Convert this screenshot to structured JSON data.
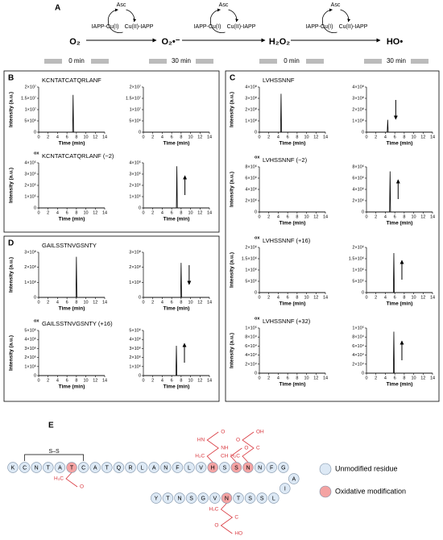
{
  "panels": [
    "A",
    "B",
    "C",
    "D",
    "E"
  ],
  "scheme": {
    "species": [
      "O₂",
      "O₂•⁻",
      "H₂O₂",
      "HO•"
    ],
    "catalysts": [
      {
        "top": "Asc",
        "left": "IAPP-Cu(I)",
        "right": "Cu(II)-IAPP"
      },
      {
        "top": "Asc",
        "left": "IAPP-Cu(I)",
        "right": "Cu(II)-IAPP"
      },
      {
        "top": "Asc",
        "left": "IAPP-Cu(I)",
        "right": "Cu(II)-IAPP"
      }
    ]
  },
  "time_headers": [
    "0 min",
    "30 min",
    "0 min",
    "30 min"
  ],
  "chart_data": [
    {
      "type": "line",
      "title": "KCNTATCATQRLANF",
      "xlabel": "Time (min)",
      "ylabel": "Intensity (a.u.)",
      "x": [
        0,
        7.2,
        7.3,
        7.4,
        14
      ],
      "values": [
        0,
        0,
        16500000,
        0,
        0
      ],
      "color": "#000000",
      "xlim": [
        0,
        14
      ],
      "xticks": [
        0,
        2,
        4,
        6,
        8,
        10,
        12,
        14
      ],
      "ylim": [
        0,
        20000000
      ],
      "yticks": [
        0,
        {
          "value": 5000000,
          "label": "5×10⁶"
        },
        {
          "value": 10000000,
          "label": "1×10⁷"
        },
        {
          "value": 15000000,
          "label": "1.5×10⁷"
        },
        {
          "value": 20000000,
          "label": "2×10⁷"
        }
      ]
    },
    {
      "type": "line",
      "xlabel": "Time (min)",
      "x": [
        0,
        14
      ],
      "values": [
        0,
        0
      ],
      "color": "#000000",
      "xlim": [
        0,
        14
      ],
      "xticks": [
        0,
        2,
        4,
        6,
        8,
        10,
        12,
        14
      ],
      "ylim": [
        0,
        20000000
      ],
      "yticks": [
        0,
        {
          "value": 5000000,
          "label": "5×10⁶"
        },
        {
          "value": 10000000,
          "label": "1×10⁷"
        },
        {
          "value": 15000000,
          "label": "1.5×10⁷"
        },
        {
          "value": 20000000,
          "label": "2×10⁷"
        }
      ]
    },
    {
      "type": "line",
      "title_prefix": "ox",
      "title": "KCNTATCATQRLANF (−2)",
      "xlabel": "Time (min)",
      "ylabel": "Intensity (a.u.)",
      "x": [
        0,
        14
      ],
      "values": [
        0,
        0
      ],
      "color": "#000000",
      "xlim": [
        0,
        14
      ],
      "xticks": [
        0,
        2,
        4,
        6,
        8,
        10,
        12,
        14
      ],
      "ylim": [
        0,
        400000
      ],
      "yticks": [
        0,
        {
          "value": 100000,
          "label": "1×10⁵"
        },
        {
          "value": 200000,
          "label": "2×10⁵"
        },
        {
          "value": 300000,
          "label": "3×10⁵"
        },
        {
          "value": 400000,
          "label": "4×10⁵"
        }
      ]
    },
    {
      "type": "line",
      "xlabel": "Time (min)",
      "x": [
        0,
        7.0,
        7.1,
        7.2,
        14
      ],
      "values": [
        0,
        0,
        370000,
        0,
        0
      ],
      "color": "#000000",
      "arrow": "up",
      "xlim": [
        0,
        14
      ],
      "xticks": [
        0,
        2,
        4,
        6,
        8,
        10,
        12,
        14
      ],
      "ylim": [
        0,
        400000
      ],
      "yticks": [
        0,
        {
          "value": 100000,
          "label": "1×10⁵"
        },
        {
          "value": 200000,
          "label": "2×10⁵"
        },
        {
          "value": 300000,
          "label": "3×10⁵"
        },
        {
          "value": 400000,
          "label": "4×10⁵"
        }
      ]
    },
    {
      "type": "line",
      "title": "GAILSSTNVGSNTY",
      "xlabel": "Time (min)",
      "ylabel": "Intensity (a.u.)",
      "x": [
        0,
        7.9,
        8.0,
        8.1,
        14
      ],
      "values": [
        0,
        0,
        270000000,
        0,
        0
      ],
      "color": "#000000",
      "xlim": [
        0,
        14
      ],
      "xticks": [
        0,
        2,
        4,
        6,
        8,
        10,
        12,
        14
      ],
      "ylim": [
        0,
        300000000
      ],
      "yticks": [
        0,
        {
          "value": 100000000,
          "label": "1×10⁸"
        },
        {
          "value": 200000000,
          "label": "2×10⁸"
        },
        {
          "value": 300000000,
          "label": "3×10⁸"
        }
      ]
    },
    {
      "type": "line",
      "xlabel": "Time (min)",
      "x": [
        0,
        7.9,
        8.0,
        8.1,
        14
      ],
      "values": [
        0,
        0,
        230000000,
        0,
        0
      ],
      "color": "#000000",
      "arrow": "down",
      "xlim": [
        0,
        14
      ],
      "xticks": [
        0,
        2,
        4,
        6,
        8,
        10,
        12,
        14
      ],
      "ylim": [
        0,
        300000000
      ],
      "yticks": [
        0,
        {
          "value": 100000000,
          "label": "1×10⁸"
        },
        {
          "value": 200000000,
          "label": "2×10⁸"
        },
        {
          "value": 300000000,
          "label": "3×10⁸"
        }
      ]
    },
    {
      "type": "line",
      "title_prefix": "ox",
      "title": "GAILSSTNVGSNTY (+16)",
      "xlabel": "Time (min)",
      "ylabel": "Intensity (a.u.)",
      "x": [
        0,
        14
      ],
      "values": [
        0,
        0
      ],
      "color": "#000000",
      "xlim": [
        0,
        14
      ],
      "xticks": [
        0,
        2,
        4,
        6,
        8,
        10,
        12,
        14
      ],
      "ylim": [
        0,
        5000000
      ],
      "yticks": [
        0,
        {
          "value": 1000000,
          "label": "1×10⁶"
        },
        {
          "value": 2000000,
          "label": "2×10⁶"
        },
        {
          "value": 3000000,
          "label": "3×10⁶"
        },
        {
          "value": 4000000,
          "label": "4×10⁶"
        },
        {
          "value": 5000000,
          "label": "5×10⁶"
        }
      ]
    },
    {
      "type": "line",
      "xlabel": "Time (min)",
      "x": [
        0,
        6.9,
        7.0,
        7.1,
        14
      ],
      "values": [
        0,
        0,
        3300000,
        0,
        0
      ],
      "color": "#000000",
      "arrow": "up",
      "xlim": [
        0,
        14
      ],
      "xticks": [
        0,
        2,
        4,
        6,
        8,
        10,
        12,
        14
      ],
      "ylim": [
        0,
        5000000
      ],
      "yticks": [
        0,
        {
          "value": 1000000,
          "label": "1×10⁶"
        },
        {
          "value": 2000000,
          "label": "2×10⁶"
        },
        {
          "value": 3000000,
          "label": "3×10⁶"
        },
        {
          "value": 4000000,
          "label": "4×10⁶"
        },
        {
          "value": 5000000,
          "label": "5×10⁶"
        }
      ]
    },
    {
      "type": "line",
      "title": "LVHSSNNF",
      "xlabel": "Time (min)",
      "ylabel": "Intensity (a.u.)",
      "x": [
        0,
        4.5,
        4.6,
        4.7,
        14
      ],
      "values": [
        0,
        0,
        340000000,
        0,
        0
      ],
      "color": "#000000",
      "xlim": [
        0,
        14
      ],
      "xticks": [
        0,
        2,
        4,
        6,
        8,
        10,
        12,
        14
      ],
      "ylim": [
        0,
        400000000
      ],
      "yticks": [
        0,
        {
          "value": 100000000,
          "label": "1×10⁸"
        },
        {
          "value": 200000000,
          "label": "2×10⁸"
        },
        {
          "value": 300000000,
          "label": "3×10⁸"
        },
        {
          "value": 400000000,
          "label": "4×10⁸"
        }
      ]
    },
    {
      "type": "line",
      "xlabel": "Time (min)",
      "x": [
        0,
        4.4,
        4.5,
        4.6,
        14
      ],
      "values": [
        0,
        0,
        110000000,
        0,
        0
      ],
      "color": "#000000",
      "arrow": "down",
      "xlim": [
        0,
        14
      ],
      "xticks": [
        0,
        2,
        4,
        6,
        8,
        10,
        12,
        14
      ],
      "ylim": [
        0,
        400000000
      ],
      "yticks": [
        0,
        {
          "value": 100000000,
          "label": "1×10⁸"
        },
        {
          "value": 200000000,
          "label": "2×10⁸"
        },
        {
          "value": 300000000,
          "label": "3×10⁸"
        },
        {
          "value": 400000000,
          "label": "4×10⁸"
        }
      ]
    },
    {
      "type": "line",
      "title_prefix": "ox",
      "title": "LVHSSNNF (−2)",
      "xlabel": "Time (min)",
      "ylabel": "Intensity (a.u.)",
      "x": [
        0,
        14
      ],
      "values": [
        0,
        0
      ],
      "color": "#000000",
      "xlim": [
        0,
        14
      ],
      "xticks": [
        0,
        2,
        4,
        6,
        8,
        10,
        12,
        14
      ],
      "ylim": [
        0,
        8000000
      ],
      "yticks": [
        0,
        {
          "value": 2000000,
          "label": "2×10⁶"
        },
        {
          "value": 4000000,
          "label": "4×10⁶"
        },
        {
          "value": 6000000,
          "label": "6×10⁶"
        },
        {
          "value": 8000000,
          "label": "8×10⁶"
        }
      ]
    },
    {
      "type": "line",
      "xlabel": "Time (min)",
      "x": [
        0,
        4.9,
        5.0,
        5.1,
        14
      ],
      "values": [
        0,
        0,
        7200000,
        0,
        0
      ],
      "color": "#000000",
      "arrow": "up",
      "xlim": [
        0,
        14
      ],
      "xticks": [
        0,
        2,
        4,
        6,
        8,
        10,
        12,
        14
      ],
      "ylim": [
        0,
        8000000
      ],
      "yticks": [
        0,
        {
          "value": 2000000,
          "label": "2×10⁶"
        },
        {
          "value": 4000000,
          "label": "4×10⁶"
        },
        {
          "value": 6000000,
          "label": "6×10⁶"
        },
        {
          "value": 8000000,
          "label": "8×10⁶"
        }
      ]
    },
    {
      "type": "line",
      "title_prefix": "ox",
      "title": "LVHSSNNF (+16)",
      "xlabel": "Time (min)",
      "ylabel": "Intensity (a.u.)",
      "x": [
        0,
        14
      ],
      "values": [
        0,
        0
      ],
      "color": "#000000",
      "xlim": [
        0,
        14
      ],
      "xticks": [
        0,
        2,
        4,
        6,
        8,
        10,
        12,
        14
      ],
      "ylim": [
        0,
        2000000
      ],
      "yticks": [
        0,
        {
          "value": 500000,
          "label": "5×10⁵"
        },
        {
          "value": 1000000,
          "label": "1×10⁶"
        },
        {
          "value": 1500000,
          "label": "1.5×10⁶"
        },
        {
          "value": 2000000,
          "label": "2×10⁶"
        }
      ]
    },
    {
      "type": "line",
      "xlabel": "Time (min)",
      "x": [
        0,
        5.7,
        5.8,
        5.9,
        14
      ],
      "values": [
        0,
        0,
        1750000,
        0,
        0
      ],
      "color": "#000000",
      "arrow": "up",
      "xlim": [
        0,
        14
      ],
      "xticks": [
        0,
        2,
        4,
        6,
        8,
        10,
        12,
        14
      ],
      "ylim": [
        0,
        2000000
      ],
      "yticks": [
        0,
        {
          "value": 500000,
          "label": "5×10⁵"
        },
        {
          "value": 1000000,
          "label": "1×10⁶"
        },
        {
          "value": 1500000,
          "label": "1.5×10⁶"
        },
        {
          "value": 2000000,
          "label": "2×10⁶"
        }
      ]
    },
    {
      "type": "line",
      "title_prefix": "ox",
      "title": "LVHSSNNF (+32)",
      "xlabel": "Time (min)",
      "ylabel": "Intensity (a.u.)",
      "x": [
        0,
        14
      ],
      "values": [
        0,
        0
      ],
      "color": "#000000",
      "xlim": [
        0,
        14
      ],
      "xticks": [
        0,
        2,
        4,
        6,
        8,
        10,
        12,
        14
      ],
      "ylim": [
        0,
        100000
      ],
      "yticks": [
        0,
        {
          "value": 20000,
          "label": "2×10⁴"
        },
        {
          "value": 40000,
          "label": "4×10⁴"
        },
        {
          "value": 60000,
          "label": "6×10⁴"
        },
        {
          "value": 80000,
          "label": "8×10⁴"
        },
        {
          "value": 100000,
          "label": "1×10⁵"
        }
      ]
    },
    {
      "type": "line",
      "xlabel": "Time (min)",
      "x": [
        0,
        5.7,
        5.8,
        5.9,
        14
      ],
      "values": [
        0,
        0,
        92000,
        0,
        0
      ],
      "color": "#000000",
      "arrow": "up",
      "xlim": [
        0,
        14
      ],
      "xticks": [
        0,
        2,
        4,
        6,
        8,
        10,
        12,
        14
      ],
      "ylim": [
        0,
        100000
      ],
      "yticks": [
        0,
        {
          "value": 20000,
          "label": "2×10⁴"
        },
        {
          "value": 40000,
          "label": "4×10⁴"
        },
        {
          "value": 60000,
          "label": "6×10⁴"
        },
        {
          "value": 80000,
          "label": "8×10⁴"
        },
        {
          "value": 100000,
          "label": "1×10⁵"
        }
      ]
    }
  ],
  "sequence": {
    "disulfide": "S–S",
    "unmodified_color": "#dde9f5",
    "modified_color": "#f4a3a3",
    "side_chain_color": "#d9383f",
    "residues": [
      {
        "label": "K",
        "modified": false
      },
      {
        "label": "C",
        "modified": false
      },
      {
        "label": "N",
        "modified": false
      },
      {
        "label": "T",
        "modified": false
      },
      {
        "label": "A",
        "modified": false
      },
      {
        "label": "T",
        "modified": true,
        "side_chain": [
          "H₃C",
          "O"
        ]
      },
      {
        "label": "C",
        "modified": false
      },
      {
        "label": "A",
        "modified": false
      },
      {
        "label": "T",
        "modified": false
      },
      {
        "label": "Q",
        "modified": false
      },
      {
        "label": "R",
        "modified": false
      },
      {
        "label": "L",
        "modified": false
      },
      {
        "label": "A",
        "modified": false
      },
      {
        "label": "N",
        "modified": false
      },
      {
        "label": "F",
        "modified": false
      },
      {
        "label": "L",
        "modified": false
      },
      {
        "label": "V",
        "modified": false
      },
      {
        "label": "H",
        "modified": true,
        "side_chain": [
          "H₂C",
          "NH",
          "HN",
          "O"
        ]
      },
      {
        "label": "S",
        "modified": false
      },
      {
        "label": "S",
        "modified": true,
        "side_chain": [
          "CH",
          "O"
        ]
      },
      {
        "label": "N",
        "modified": true,
        "side_chain": [
          "H₂C",
          "C",
          "O",
          "OH"
        ]
      },
      {
        "label": "N",
        "modified": false
      },
      {
        "label": "F",
        "modified": false
      },
      {
        "label": "G",
        "modified": false
      },
      {
        "label": "A",
        "modified": false
      },
      {
        "label": "I",
        "modified": false
      },
      {
        "label": "L",
        "modified": false
      },
      {
        "label": "S",
        "modified": false
      },
      {
        "label": "S",
        "modified": false
      },
      {
        "label": "T",
        "modified": false
      },
      {
        "label": "N",
        "modified": true,
        "side_chain": [
          "H₂C",
          "C",
          "O",
          "HO"
        ]
      },
      {
        "label": "V",
        "modified": false
      },
      {
        "label": "G",
        "modified": false
      },
      {
        "label": "S",
        "modified": false
      },
      {
        "label": "N",
        "modified": false
      },
      {
        "label": "T",
        "modified": false
      },
      {
        "label": "Y",
        "modified": false
      }
    ],
    "legend": [
      "Unmodified residue",
      "Oxidative modification"
    ]
  }
}
